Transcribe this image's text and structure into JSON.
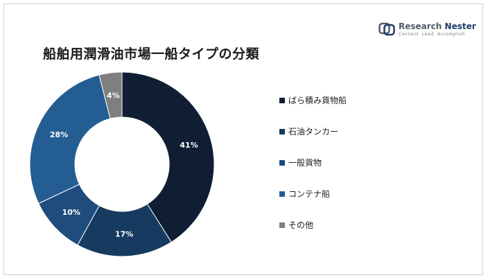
{
  "chart_data": {
    "type": "pie",
    "title": "船舶用潤滑油市場一船タイプの分類",
    "categories": [
      "ばら積み貨物船",
      "石油タンカー",
      "一般貨物",
      "コンテナ船",
      "その他"
    ],
    "values": [
      41,
      17,
      10,
      28,
      4
    ],
    "value_labels": [
      "41%",
      "17%",
      "10%",
      "28%",
      "4%"
    ],
    "colors": [
      "#0f1e33",
      "#173a60",
      "#1d4c7d",
      "#245d92",
      "#7f7f7f"
    ],
    "donut": true,
    "legend_position": "right"
  },
  "brand": {
    "name_part1": "Research",
    "name_part2": "Nester",
    "tagline": "Connect. Lead. Accomplish"
  }
}
